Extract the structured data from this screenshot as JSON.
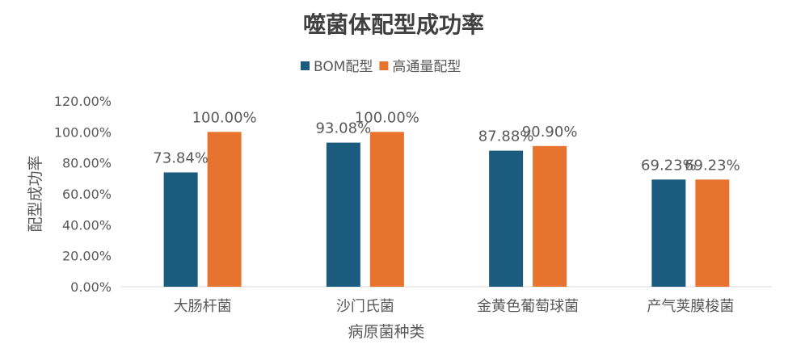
{
  "chart_data": {
    "type": "bar",
    "title": "噬菌体配型成功率",
    "xlabel": "病原菌种类",
    "ylabel": "配型成功率",
    "categories": [
      "大肠杆菌",
      "沙门氏菌",
      "金黄色葡萄球菌",
      "产气荚膜梭菌"
    ],
    "series": [
      {
        "name": "BOM配型",
        "values": [
          73.84,
          93.08,
          87.88,
          69.23
        ],
        "labels": [
          "73.84%",
          "93.08%",
          "87.88%",
          "69.23%"
        ],
        "color": "#1b5b7e"
      },
      {
        "name": "高通量配型",
        "values": [
          100.0,
          100.0,
          90.9,
          69.23
        ],
        "labels": [
          "100.00%",
          "100.00%",
          "90.90%",
          "69.23%"
        ],
        "color": "#e8732f"
      }
    ],
    "ylim": [
      0,
      120
    ],
    "yticks": [
      "0.00%",
      "20.00%",
      "40.00%",
      "60.00%",
      "80.00%",
      "100.00%",
      "120.00%"
    ],
    "grid": false,
    "legend": "top"
  }
}
